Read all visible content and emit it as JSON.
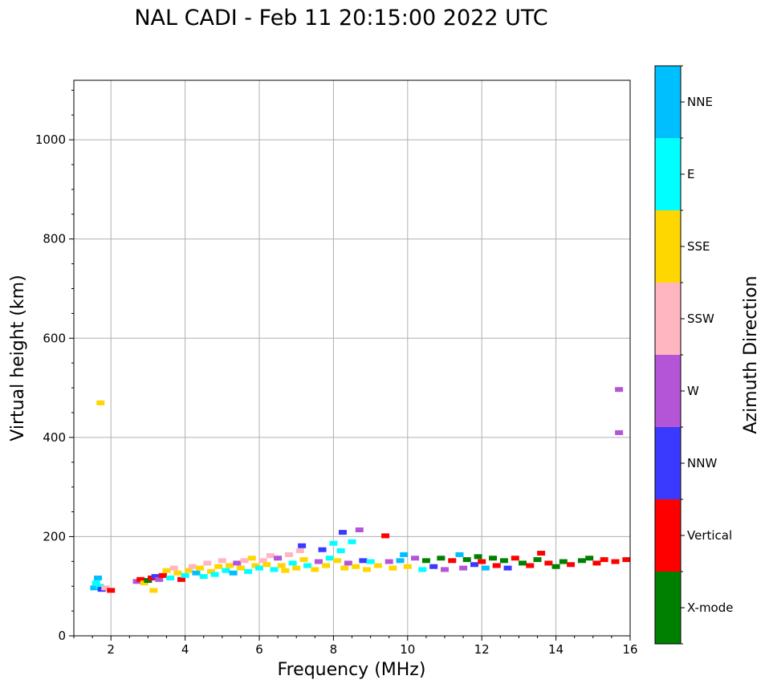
{
  "chart_data": {
    "type": "scatter",
    "title": "NAL CADI - Feb 11 20:15:00 2022 UTC",
    "xlabel": "Frequency (MHz)",
    "ylabel": "Virtual height (km)",
    "xlim": [
      1,
      16
    ],
    "ylim": [
      0,
      1120
    ],
    "xticks": [
      2,
      4,
      6,
      8,
      10,
      12,
      14,
      16
    ],
    "yticks": [
      0,
      200,
      400,
      600,
      800,
      1000
    ],
    "grid": true,
    "colorbar": {
      "label": "Azimuth Direction",
      "categories": [
        {
          "name": "X-mode",
          "color": "#008000"
        },
        {
          "name": "Vertical",
          "color": "#ff0000"
        },
        {
          "name": "NNW",
          "color": "#3a3aff"
        },
        {
          "name": "W",
          "color": "#b455d8"
        },
        {
          "name": "SSW",
          "color": "#ffb6c1"
        },
        {
          "name": "SSE",
          "color": "#ffd700"
        },
        {
          "name": "E",
          "color": "#00ffff"
        },
        {
          "name": "NNE",
          "color": "#00bfff"
        }
      ]
    },
    "points": [
      {
        "f": 1.55,
        "h": 95,
        "dir": "NNE"
      },
      {
        "f": 1.6,
        "h": 105,
        "dir": "E"
      },
      {
        "f": 1.65,
        "h": 115,
        "dir": "NNE"
      },
      {
        "f": 1.7,
        "h": 98,
        "dir": "E"
      },
      {
        "f": 1.75,
        "h": 92,
        "dir": "NNW"
      },
      {
        "f": 1.72,
        "h": 468,
        "dir": "SSE"
      },
      {
        "f": 1.85,
        "h": 95,
        "dir": "SSW"
      },
      {
        "f": 2.0,
        "h": 90,
        "dir": "Vertical"
      },
      {
        "f": 2.7,
        "h": 108,
        "dir": "W"
      },
      {
        "f": 2.8,
        "h": 112,
        "dir": "Vertical"
      },
      {
        "f": 2.9,
        "h": 105,
        "dir": "SSE"
      },
      {
        "f": 3.0,
        "h": 110,
        "dir": "X-mode"
      },
      {
        "f": 3.1,
        "h": 115,
        "dir": "Vertical"
      },
      {
        "f": 3.15,
        "h": 90,
        "dir": "SSE"
      },
      {
        "f": 3.2,
        "h": 118,
        "dir": "NNW"
      },
      {
        "f": 3.3,
        "h": 112,
        "dir": "W"
      },
      {
        "f": 3.4,
        "h": 120,
        "dir": "Vertical"
      },
      {
        "f": 3.5,
        "h": 130,
        "dir": "SSE"
      },
      {
        "f": 3.6,
        "h": 115,
        "dir": "E"
      },
      {
        "f": 3.7,
        "h": 135,
        "dir": "SSW"
      },
      {
        "f": 3.8,
        "h": 125,
        "dir": "SSE"
      },
      {
        "f": 3.9,
        "h": 112,
        "dir": "Vertical"
      },
      {
        "f": 4.0,
        "h": 120,
        "dir": "E"
      },
      {
        "f": 4.1,
        "h": 130,
        "dir": "SSE"
      },
      {
        "f": 4.2,
        "h": 138,
        "dir": "SSW"
      },
      {
        "f": 4.3,
        "h": 125,
        "dir": "NNE"
      },
      {
        "f": 4.4,
        "h": 135,
        "dir": "SSE"
      },
      {
        "f": 4.5,
        "h": 118,
        "dir": "E"
      },
      {
        "f": 4.6,
        "h": 145,
        "dir": "SSW"
      },
      {
        "f": 4.7,
        "h": 128,
        "dir": "SSE"
      },
      {
        "f": 4.8,
        "h": 122,
        "dir": "E"
      },
      {
        "f": 4.9,
        "h": 138,
        "dir": "SSE"
      },
      {
        "f": 5.0,
        "h": 150,
        "dir": "SSW"
      },
      {
        "f": 5.1,
        "h": 130,
        "dir": "E"
      },
      {
        "f": 5.2,
        "h": 140,
        "dir": "SSE"
      },
      {
        "f": 5.3,
        "h": 125,
        "dir": "NNE"
      },
      {
        "f": 5.4,
        "h": 145,
        "dir": "W"
      },
      {
        "f": 5.5,
        "h": 135,
        "dir": "SSE"
      },
      {
        "f": 5.6,
        "h": 150,
        "dir": "SSW"
      },
      {
        "f": 5.7,
        "h": 128,
        "dir": "E"
      },
      {
        "f": 5.8,
        "h": 155,
        "dir": "SSE"
      },
      {
        "f": 5.9,
        "h": 140,
        "dir": "SSE"
      },
      {
        "f": 6.0,
        "h": 135,
        "dir": "E"
      },
      {
        "f": 6.1,
        "h": 150,
        "dir": "SSW"
      },
      {
        "f": 6.2,
        "h": 142,
        "dir": "SSE"
      },
      {
        "f": 6.3,
        "h": 160,
        "dir": "SSW"
      },
      {
        "f": 6.4,
        "h": 132,
        "dir": "E"
      },
      {
        "f": 6.5,
        "h": 155,
        "dir": "W"
      },
      {
        "f": 6.6,
        "h": 140,
        "dir": "SSE"
      },
      {
        "f": 6.7,
        "h": 130,
        "dir": "SSE"
      },
      {
        "f": 6.8,
        "h": 162,
        "dir": "SSW"
      },
      {
        "f": 6.9,
        "h": 145,
        "dir": "E"
      },
      {
        "f": 7.0,
        "h": 135,
        "dir": "SSE"
      },
      {
        "f": 7.1,
        "h": 170,
        "dir": "SSW"
      },
      {
        "f": 7.15,
        "h": 180,
        "dir": "NNW"
      },
      {
        "f": 7.2,
        "h": 152,
        "dir": "SSE"
      },
      {
        "f": 7.3,
        "h": 140,
        "dir": "E"
      },
      {
        "f": 7.5,
        "h": 132,
        "dir": "SSE"
      },
      {
        "f": 7.6,
        "h": 148,
        "dir": "W"
      },
      {
        "f": 7.7,
        "h": 172,
        "dir": "NNW"
      },
      {
        "f": 7.8,
        "h": 140,
        "dir": "SSE"
      },
      {
        "f": 7.9,
        "h": 155,
        "dir": "E"
      },
      {
        "f": 8.0,
        "h": 185,
        "dir": "E"
      },
      {
        "f": 8.1,
        "h": 150,
        "dir": "SSE"
      },
      {
        "f": 8.2,
        "h": 170,
        "dir": "E"
      },
      {
        "f": 8.25,
        "h": 207,
        "dir": "NNW"
      },
      {
        "f": 8.3,
        "h": 135,
        "dir": "SSE"
      },
      {
        "f": 8.4,
        "h": 145,
        "dir": "W"
      },
      {
        "f": 8.5,
        "h": 188,
        "dir": "E"
      },
      {
        "f": 8.6,
        "h": 138,
        "dir": "SSE"
      },
      {
        "f": 8.7,
        "h": 212,
        "dir": "W"
      },
      {
        "f": 8.8,
        "h": 150,
        "dir": "NNW"
      },
      {
        "f": 8.9,
        "h": 132,
        "dir": "SSE"
      },
      {
        "f": 9.0,
        "h": 148,
        "dir": "E"
      },
      {
        "f": 9.2,
        "h": 140,
        "dir": "SSE"
      },
      {
        "f": 9.4,
        "h": 200,
        "dir": "Vertical"
      },
      {
        "f": 9.5,
        "h": 148,
        "dir": "W"
      },
      {
        "f": 9.6,
        "h": 135,
        "dir": "SSE"
      },
      {
        "f": 9.8,
        "h": 150,
        "dir": "NNE"
      },
      {
        "f": 9.9,
        "h": 162,
        "dir": "NNE"
      },
      {
        "f": 10.0,
        "h": 138,
        "dir": "SSE"
      },
      {
        "f": 10.2,
        "h": 155,
        "dir": "W"
      },
      {
        "f": 10.4,
        "h": 132,
        "dir": "E"
      },
      {
        "f": 10.5,
        "h": 150,
        "dir": "X-mode"
      },
      {
        "f": 10.7,
        "h": 138,
        "dir": "NNW"
      },
      {
        "f": 10.9,
        "h": 155,
        "dir": "X-mode"
      },
      {
        "f": 11.0,
        "h": 132,
        "dir": "W"
      },
      {
        "f": 11.2,
        "h": 150,
        "dir": "Vertical"
      },
      {
        "f": 11.4,
        "h": 162,
        "dir": "NNE"
      },
      {
        "f": 11.5,
        "h": 135,
        "dir": "W"
      },
      {
        "f": 11.6,
        "h": 152,
        "dir": "X-mode"
      },
      {
        "f": 11.8,
        "h": 142,
        "dir": "NNW"
      },
      {
        "f": 11.9,
        "h": 158,
        "dir": "X-mode"
      },
      {
        "f": 12.0,
        "h": 148,
        "dir": "Vertical"
      },
      {
        "f": 12.1,
        "h": 135,
        "dir": "NNE"
      },
      {
        "f": 12.3,
        "h": 155,
        "dir": "X-mode"
      },
      {
        "f": 12.4,
        "h": 140,
        "dir": "Vertical"
      },
      {
        "f": 12.6,
        "h": 150,
        "dir": "X-mode"
      },
      {
        "f": 12.7,
        "h": 135,
        "dir": "NNW"
      },
      {
        "f": 12.9,
        "h": 155,
        "dir": "Vertical"
      },
      {
        "f": 13.1,
        "h": 145,
        "dir": "X-mode"
      },
      {
        "f": 13.3,
        "h": 140,
        "dir": "Vertical"
      },
      {
        "f": 13.5,
        "h": 152,
        "dir": "X-mode"
      },
      {
        "f": 13.6,
        "h": 165,
        "dir": "Vertical"
      },
      {
        "f": 13.8,
        "h": 145,
        "dir": "Vertical"
      },
      {
        "f": 14.0,
        "h": 138,
        "dir": "X-mode"
      },
      {
        "f": 14.2,
        "h": 148,
        "dir": "X-mode"
      },
      {
        "f": 14.4,
        "h": 142,
        "dir": "Vertical"
      },
      {
        "f": 14.7,
        "h": 150,
        "dir": "X-mode"
      },
      {
        "f": 14.9,
        "h": 155,
        "dir": "X-mode"
      },
      {
        "f": 15.1,
        "h": 145,
        "dir": "Vertical"
      },
      {
        "f": 15.3,
        "h": 152,
        "dir": "Vertical"
      },
      {
        "f": 15.6,
        "h": 148,
        "dir": "Vertical"
      },
      {
        "f": 15.9,
        "h": 152,
        "dir": "Vertical"
      },
      {
        "f": 15.7,
        "h": 408,
        "dir": "W"
      },
      {
        "f": 15.7,
        "h": 495,
        "dir": "W"
      }
    ]
  }
}
